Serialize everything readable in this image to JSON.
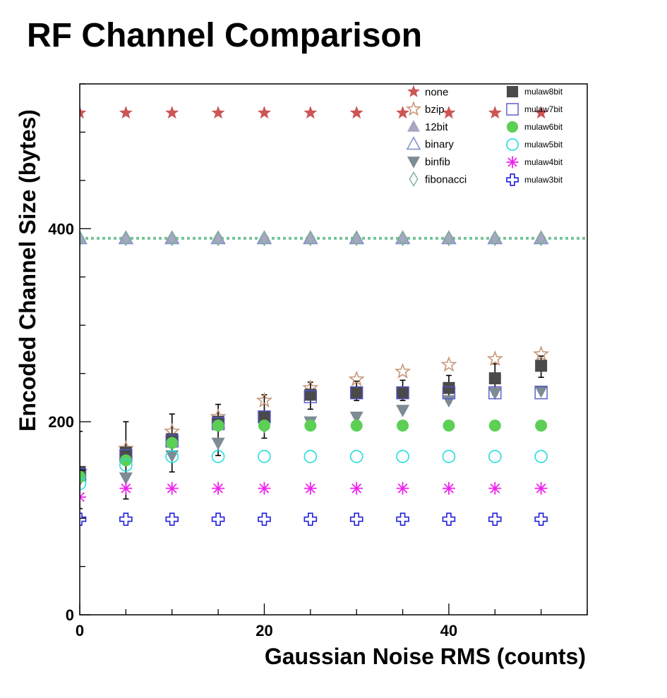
{
  "chart_data": {
    "type": "scatter",
    "title": "RF Channel Comparison",
    "xlabel": "Gaussian Noise RMS (counts)",
    "ylabel": "Encoded Channel Size (bytes)",
    "xlim": [
      0,
      55
    ],
    "ylim": [
      0,
      550
    ],
    "x_ticks": [
      0,
      20,
      40
    ],
    "y_ticks": [
      0,
      200,
      400
    ],
    "grid": false,
    "legend_position": "top-right",
    "x": [
      0,
      5,
      10,
      15,
      20,
      25,
      30,
      35,
      40,
      45,
      50
    ],
    "series": [
      {
        "name": "none",
        "marker": "star-filled",
        "color": "#cc5555",
        "values": [
          520,
          520,
          520,
          520,
          520,
          520,
          520,
          520,
          520,
          520,
          520
        ]
      },
      {
        "name": "bzip",
        "marker": "star-open",
        "color": "#c8977a",
        "values": [
          148,
          172,
          190,
          205,
          222,
          235,
          244,
          252,
          259,
          265,
          270
        ]
      },
      {
        "name": "12bit",
        "marker": "triangle-up-filled",
        "color": "#a9a6c2",
        "values": [
          390,
          390,
          390,
          390,
          390,
          390,
          390,
          390,
          390,
          390,
          390
        ]
      },
      {
        "name": "binary",
        "marker": "triangle-up-open",
        "color": "#7f93c9",
        "values": [
          390,
          390,
          390,
          390,
          390,
          390,
          390,
          390,
          390,
          390,
          390
        ]
      },
      {
        "name": "binfib",
        "marker": "triangle-down-filled",
        "color": "#7d8b94",
        "values": [
          140,
          142,
          165,
          178,
          195,
          200,
          205,
          212,
          222,
          230,
          232
        ]
      },
      {
        "name": "fibonacci",
        "marker": "diamond-open",
        "color": "#7fb095",
        "values": [
          390,
          390,
          390,
          390,
          390,
          390,
          390,
          390,
          390,
          390,
          390
        ]
      },
      {
        "name": "mulaw8bit",
        "marker": "square-filled",
        "color": "#4a4a4a",
        "values": [
          148,
          168,
          182,
          200,
          205,
          228,
          230,
          230,
          235,
          245,
          258
        ]
      },
      {
        "name": "mulaw7bit",
        "marker": "square-open",
        "color": "#5555cc",
        "values": [
          145,
          165,
          180,
          198,
          205,
          226,
          230,
          230,
          230,
          230,
          230
        ]
      },
      {
        "name": "mulaw6bit",
        "marker": "circle-filled",
        "color": "#5ccf55",
        "values": [
          143,
          160,
          178,
          196,
          196,
          196,
          196,
          196,
          196,
          196,
          196
        ]
      },
      {
        "name": "mulaw5bit",
        "marker": "circle-open",
        "color": "#22dddd",
        "values": [
          136,
          155,
          164,
          164,
          164,
          164,
          164,
          164,
          164,
          164,
          164
        ]
      },
      {
        "name": "mulaw4bit",
        "marker": "asterisk",
        "color": "#ee22ee",
        "values": [
          122,
          131,
          131,
          131,
          131,
          131,
          131,
          131,
          131,
          131,
          131
        ]
      },
      {
        "name": "mulaw3bit",
        "marker": "cross-open",
        "color": "#1f1fdd",
        "values": [
          99,
          99,
          99,
          99,
          99,
          99,
          99,
          99,
          99,
          99,
          99
        ]
      }
    ],
    "error_bars": {
      "x": [
        0,
        5,
        10,
        15,
        20,
        25,
        30,
        35,
        40,
        45,
        50
      ],
      "low": [
        110,
        120,
        148,
        165,
        183,
        213,
        222,
        222,
        220,
        228,
        246
      ],
      "high": [
        190,
        200,
        208,
        218,
        228,
        241,
        242,
        243,
        248,
        260,
        268
      ]
    },
    "reference_line": {
      "y": 390,
      "style": "dotted",
      "color": "#77c39a"
    }
  }
}
